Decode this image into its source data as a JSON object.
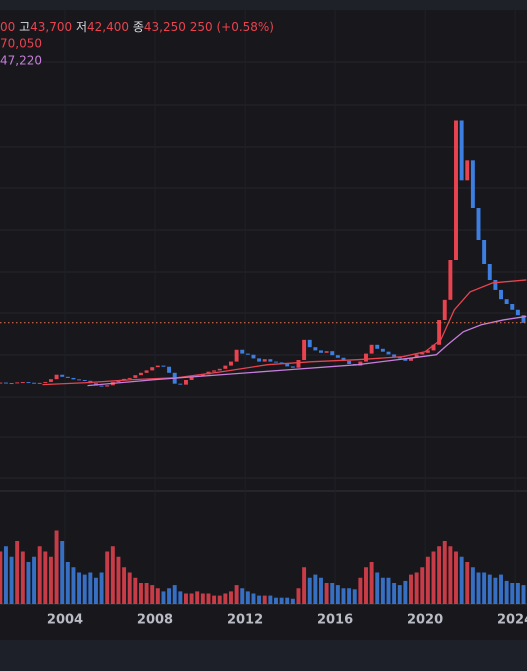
{
  "chart_data": {
    "type": "candlestick",
    "legend": {
      "open": "00",
      "high_label": "고",
      "high": "43,700",
      "low_label": "저",
      "low": "42,400",
      "close_label": "종",
      "close": "43,250",
      "change": "250 (+0.58%)"
    },
    "up_color": "#e8434f",
    "down_color": "#3d7fe0",
    "x": [
      2001.125,
      2001.375,
      2001.625,
      2001.875,
      2002.125,
      2002.375,
      2002.625,
      2002.875,
      2003.125,
      2003.375,
      2003.625,
      2003.875,
      2004.125,
      2004.375,
      2004.625,
      2004.875,
      2005.125,
      2005.375,
      2005.625,
      2005.875,
      2006.125,
      2006.375,
      2006.625,
      2006.875,
      2007.125,
      2007.375,
      2007.625,
      2007.875,
      2008.125,
      2008.375,
      2008.625,
      2008.875,
      2009.125,
      2009.375,
      2009.625,
      2009.875,
      2010.125,
      2010.375,
      2010.625,
      2010.875,
      2011.125,
      2011.375,
      2011.625,
      2011.875,
      2012.125,
      2012.375,
      2012.625,
      2012.875,
      2013.125,
      2013.375,
      2013.625,
      2013.875,
      2014.125,
      2014.375,
      2014.625,
      2014.875,
      2015.125,
      2015.375,
      2015.625,
      2015.875,
      2016.125,
      2016.375,
      2016.625,
      2016.875,
      2017.125,
      2017.375,
      2017.625,
      2017.875,
      2018.125,
      2018.375,
      2018.625,
      2018.875,
      2019.125,
      2019.375,
      2019.625,
      2019.875,
      2020.125,
      2020.375,
      2020.625,
      2020.875,
      2021.125,
      2021.375,
      2021.625,
      2021.875,
      2022.125,
      2022.375,
      2022.625,
      2022.875,
      2023.125,
      2023.375,
      2023.625,
      2023.875,
      2024.125,
      2024.375
    ],
    "close": [
      5900,
      5600,
      5400,
      6000,
      6200,
      5800,
      5500,
      5700,
      6300,
      8000,
      10800,
      9500,
      8800,
      7900,
      7500,
      7000,
      5500,
      4000,
      3400,
      4200,
      6200,
      7500,
      8200,
      8800,
      10500,
      12000,
      13500,
      15500,
      16500,
      15800,
      12000,
      5200,
      4600,
      7500,
      9500,
      10200,
      11000,
      12700,
      13500,
      14500,
      16500,
      19000,
      26400,
      24000,
      23300,
      21000,
      19000,
      20500,
      19000,
      18500,
      17500,
      16000,
      15200,
      20000,
      32600,
      28000,
      26000,
      24500,
      25500,
      23000,
      21400,
      19500,
      17500,
      16500,
      19000,
      24000,
      29500,
      27000,
      25200,
      23500,
      22000,
      21000,
      19500,
      21400,
      23500,
      24500,
      26000,
      29500,
      45000,
      57600,
      82500,
      169700,
      132300,
      144800,
      115000,
      95000,
      80000,
      70000,
      63800,
      58000,
      55000,
      51400,
      48000,
      43250
    ],
    "volume": [
      50,
      55,
      45,
      60,
      50,
      40,
      45,
      55,
      50,
      45,
      70,
      60,
      40,
      35,
      30,
      28,
      30,
      25,
      30,
      50,
      55,
      45,
      35,
      30,
      25,
      20,
      20,
      18,
      15,
      12,
      15,
      18,
      12,
      10,
      10,
      12,
      10,
      10,
      8,
      8,
      10,
      12,
      18,
      15,
      12,
      10,
      8,
      8,
      8,
      6,
      6,
      6,
      5,
      15,
      35,
      25,
      28,
      25,
      20,
      20,
      18,
      15,
      15,
      14,
      25,
      35,
      40,
      30,
      25,
      25,
      20,
      18,
      22,
      28,
      30,
      35,
      45,
      50,
      55,
      60,
      55,
      50,
      45,
      40,
      35,
      30,
      30,
      28,
      25,
      28,
      22,
      20,
      20,
      18
    ],
    "ma_lines": [
      {
        "color": "#e8434f",
        "label": "70,050",
        "x": [
          2003,
          2005,
          2007,
          2009,
          2011,
          2013,
          2015,
          2017,
          2019,
          2020,
          2020.7,
          2021.3,
          2022,
          2023,
          2024.5
        ],
        "values": [
          4620,
          5870,
          7740,
          8990,
          12720,
          17080,
          18950,
          20200,
          22070,
          25180,
          32660,
          51350,
          62560,
          68170,
          70050
        ]
      },
      {
        "color": "#c77ddb",
        "label": "47,220",
        "x": [
          2005,
          2008,
          2011,
          2014,
          2017,
          2019.5,
          2020.5,
          2021,
          2021.7,
          2022.5,
          2023.5,
          2024.5
        ],
        "values": [
          3990,
          7740,
          10850,
          13970,
          17080,
          21440,
          23310,
          29540,
          37640,
          42000,
          45120,
          47220
        ]
      }
    ],
    "xlim": [
      2001,
      2024.53
    ],
    "ylim": [
      0,
      220000
    ],
    "vlim": [
      0,
      80
    ],
    "xticks": [
      2004,
      2008,
      2012,
      2016,
      2020,
      2024
    ]
  }
}
